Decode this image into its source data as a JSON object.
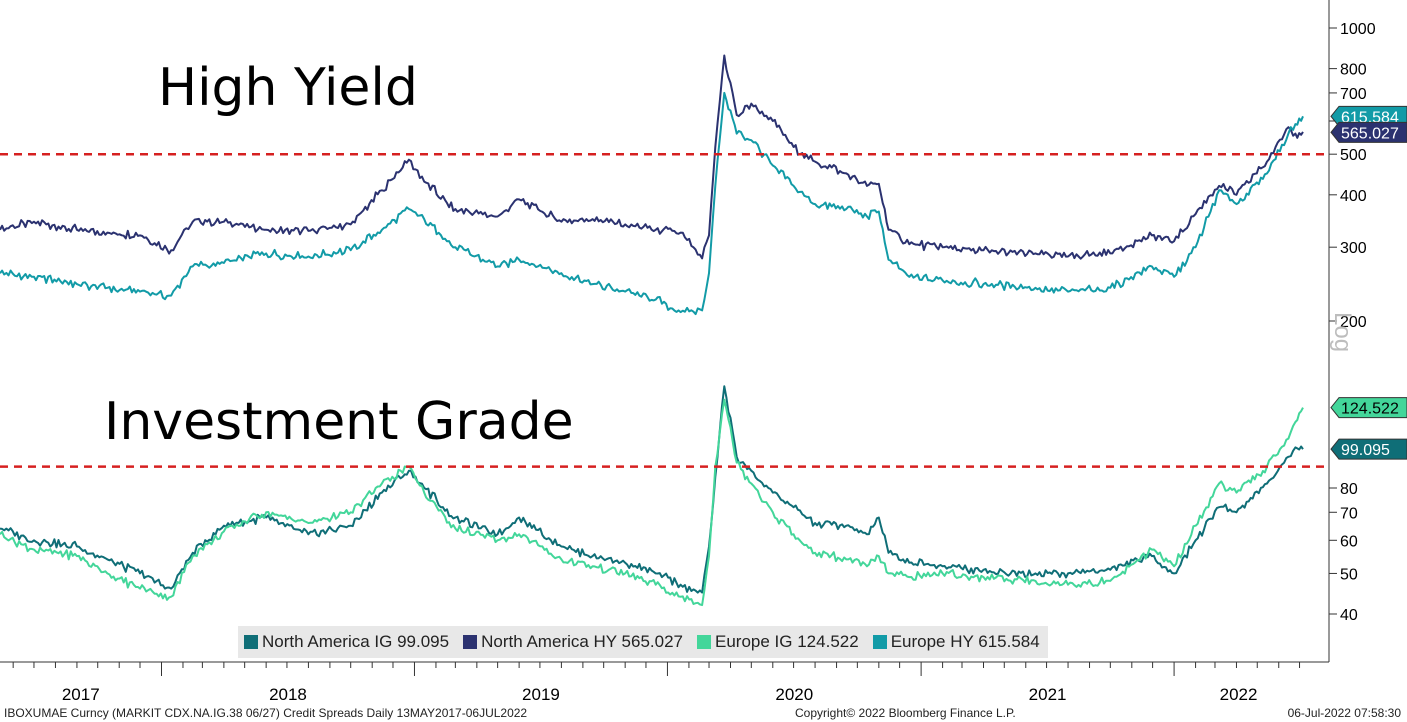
{
  "colors": {
    "na_ig": "#0f6e77",
    "na_hy": "#2b3270",
    "eu_ig": "#43d69a",
    "eu_hy": "#129ba7",
    "threshold": "#d62020",
    "value_tag_eu_hy_text": "#ffffff",
    "value_tag_eu_ig_text": "#000000"
  },
  "annotations": {
    "high_yield": "High Yield",
    "investment_grade": "Investment Grade"
  },
  "axis_scale_label": "Log",
  "legend": [
    {
      "label": "North America IG 99.095",
      "color": "#0f6e77"
    },
    {
      "label": "North America HY 565.027",
      "color": "#2b3270"
    },
    {
      "label": "Europe IG 124.522",
      "color": "#43d69a"
    },
    {
      "label": "Europe HY 615.584",
      "color": "#129ba7"
    }
  ],
  "footer": {
    "left": "IBOXUMAE Curncy (MARKIT CDX.NA.IG.38 06/27) Credit Spreads  Daily 13MAY2017-06JUL2022",
    "center": "Copyright© 2022 Bloomberg Finance L.P.",
    "right": "06-Jul-2022 07:58:30"
  },
  "chart_data": [
    {
      "type": "line",
      "panel": "High Yield",
      "scale": "log",
      "x_ticks": [
        "2017",
        "2018",
        "2019",
        "2020",
        "2021",
        "2022"
      ],
      "x_range": [
        "2017-05-13",
        "2022-07-06"
      ],
      "y_ticks": [
        200,
        300,
        400,
        500,
        600,
        700,
        800,
        1000
      ],
      "y_tick_labels": [
        "200",
        "300",
        "400",
        "500",
        "",
        "700",
        "800",
        "1000"
      ],
      "ylim": [
        160,
        1050
      ],
      "threshold": 500,
      "last_value_tags": [
        {
          "series": "Europe HY",
          "label": "615.584",
          "value": 615.584
        },
        {
          "series": "North America HY",
          "label": "565.027",
          "value": 565.027
        }
      ],
      "series": [
        {
          "name": "North America HY",
          "points": [
            [
              "2017-05-13",
              330
            ],
            [
              "2017-07-01",
              345
            ],
            [
              "2017-09-01",
              330
            ],
            [
              "2017-10-15",
              325
            ],
            [
              "2017-12-01",
              320
            ],
            [
              "2018-01-15",
              295
            ],
            [
              "2018-02-15",
              345
            ],
            [
              "2018-04-01",
              345
            ],
            [
              "2018-06-01",
              330
            ],
            [
              "2018-08-01",
              328
            ],
            [
              "2018-10-01",
              340
            ],
            [
              "2018-11-15",
              410
            ],
            [
              "2018-12-24",
              485
            ],
            [
              "2019-01-15",
              430
            ],
            [
              "2019-03-01",
              370
            ],
            [
              "2019-05-01",
              355
            ],
            [
              "2019-06-01",
              390
            ],
            [
              "2019-08-01",
              345
            ],
            [
              "2019-09-15",
              350
            ],
            [
              "2019-11-01",
              340
            ],
            [
              "2019-12-15",
              330
            ],
            [
              "2020-01-20",
              325
            ],
            [
              "2020-02-20",
              282
            ],
            [
              "2020-03-01",
              320
            ],
            [
              "2020-03-10",
              520
            ],
            [
              "2020-03-23",
              860
            ],
            [
              "2020-04-10",
              620
            ],
            [
              "2020-05-01",
              660
            ],
            [
              "2020-06-01",
              600
            ],
            [
              "2020-07-01",
              520
            ],
            [
              "2020-08-01",
              480
            ],
            [
              "2020-09-15",
              450
            ],
            [
              "2020-10-15",
              420
            ],
            [
              "2020-11-01",
              425
            ],
            [
              "2020-11-15",
              330
            ],
            [
              "2020-12-15",
              305
            ],
            [
              "2021-02-01",
              300
            ],
            [
              "2021-04-01",
              295
            ],
            [
              "2021-06-15",
              290
            ],
            [
              "2021-08-01",
              285
            ],
            [
              "2021-10-01",
              290
            ],
            [
              "2021-11-30",
              320
            ],
            [
              "2022-01-01",
              310
            ],
            [
              "2022-02-01",
              360
            ],
            [
              "2022-03-07",
              420
            ],
            [
              "2022-04-01",
              400
            ],
            [
              "2022-05-15",
              480
            ],
            [
              "2022-06-15",
              580
            ],
            [
              "2022-06-25",
              560
            ],
            [
              "2022-07-06",
              565.027
            ]
          ]
        },
        {
          "name": "Europe HY",
          "points": [
            [
              "2017-05-13",
              260
            ],
            [
              "2017-07-01",
              255
            ],
            [
              "2017-09-01",
              245
            ],
            [
              "2017-10-15",
              240
            ],
            [
              "2017-12-01",
              235
            ],
            [
              "2018-01-15",
              230
            ],
            [
              "2018-02-15",
              270
            ],
            [
              "2018-04-01",
              275
            ],
            [
              "2018-06-01",
              290
            ],
            [
              "2018-08-01",
              285
            ],
            [
              "2018-10-01",
              295
            ],
            [
              "2018-11-15",
              330
            ],
            [
              "2018-12-24",
              370
            ],
            [
              "2019-01-15",
              350
            ],
            [
              "2019-03-01",
              300
            ],
            [
              "2019-05-01",
              270
            ],
            [
              "2019-06-01",
              280
            ],
            [
              "2019-08-01",
              260
            ],
            [
              "2019-09-15",
              245
            ],
            [
              "2019-11-01",
              235
            ],
            [
              "2019-12-15",
              225
            ],
            [
              "2020-01-20",
              210
            ],
            [
              "2020-02-20",
              212
            ],
            [
              "2020-03-01",
              260
            ],
            [
              "2020-03-10",
              420
            ],
            [
              "2020-03-23",
              700
            ],
            [
              "2020-04-10",
              560
            ],
            [
              "2020-05-01",
              540
            ],
            [
              "2020-06-01",
              470
            ],
            [
              "2020-07-01",
              420
            ],
            [
              "2020-08-01",
              380
            ],
            [
              "2020-09-15",
              370
            ],
            [
              "2020-10-15",
              355
            ],
            [
              "2020-11-01",
              365
            ],
            [
              "2020-11-15",
              280
            ],
            [
              "2020-12-15",
              255
            ],
            [
              "2021-02-01",
              250
            ],
            [
              "2021-04-01",
              245
            ],
            [
              "2021-06-15",
              240
            ],
            [
              "2021-08-01",
              235
            ],
            [
              "2021-10-01",
              240
            ],
            [
              "2021-11-30",
              270
            ],
            [
              "2022-01-01",
              255
            ],
            [
              "2022-02-01",
              300
            ],
            [
              "2022-03-07",
              410
            ],
            [
              "2022-04-01",
              380
            ],
            [
              "2022-05-15",
              450
            ],
            [
              "2022-06-15",
              560
            ],
            [
              "2022-06-25",
              590
            ],
            [
              "2022-07-06",
              615.584
            ]
          ]
        }
      ]
    },
    {
      "type": "line",
      "panel": "Investment Grade",
      "scale": "log",
      "x_ticks": [
        "2017",
        "2018",
        "2019",
        "2020",
        "2021",
        "2022"
      ],
      "x_range": [
        "2017-05-13",
        "2022-07-06"
      ],
      "y_ticks": [
        40,
        50,
        60,
        70,
        80
      ],
      "y_tick_labels": [
        "40",
        "50",
        "60",
        "70",
        "80"
      ],
      "ylim": [
        37,
        135
      ],
      "threshold": 90,
      "last_value_tags": [
        {
          "series": "Europe IG",
          "label": "124.522",
          "value": 124.522
        },
        {
          "series": "North America IG",
          "label": "99.095",
          "value": 99.095
        }
      ],
      "series": [
        {
          "name": "North America IG",
          "points": [
            [
              "2017-05-13",
              64
            ],
            [
              "2017-07-01",
              60
            ],
            [
              "2017-09-01",
              58
            ],
            [
              "2017-10-15",
              54
            ],
            [
              "2017-12-01",
              50
            ],
            [
              "2018-01-15",
              46
            ],
            [
              "2018-02-15",
              56
            ],
            [
              "2018-04-01",
              65
            ],
            [
              "2018-06-01",
              68
            ],
            [
              "2018-08-01",
              62
            ],
            [
              "2018-10-01",
              65
            ],
            [
              "2018-11-15",
              78
            ],
            [
              "2018-12-24",
              88
            ],
            [
              "2019-01-15",
              80
            ],
            [
              "2019-03-01",
              68
            ],
            [
              "2019-05-01",
              62
            ],
            [
              "2019-06-01",
              68
            ],
            [
              "2019-08-01",
              58
            ],
            [
              "2019-09-15",
              55
            ],
            [
              "2019-11-01",
              53
            ],
            [
              "2019-12-15",
              50
            ],
            [
              "2020-01-20",
              47
            ],
            [
              "2020-02-20",
              45
            ],
            [
              "2020-03-01",
              58
            ],
            [
              "2020-03-10",
              85
            ],
            [
              "2020-03-23",
              140
            ],
            [
              "2020-04-10",
              95
            ],
            [
              "2020-05-01",
              88
            ],
            [
              "2020-06-01",
              78
            ],
            [
              "2020-07-01",
              72
            ],
            [
              "2020-08-01",
              66
            ],
            [
              "2020-09-15",
              65
            ],
            [
              "2020-10-15",
              62
            ],
            [
              "2020-11-01",
              68
            ],
            [
              "2020-11-15",
              56
            ],
            [
              "2020-12-15",
              53
            ],
            [
              "2021-02-01",
              52
            ],
            [
              "2021-04-01",
              51
            ],
            [
              "2021-06-15",
              50
            ],
            [
              "2021-08-01",
              50
            ],
            [
              "2021-10-01",
              51
            ],
            [
              "2021-11-30",
              55
            ],
            [
              "2022-01-01",
              50
            ],
            [
              "2022-02-01",
              60
            ],
            [
              "2022-03-07",
              72
            ],
            [
              "2022-04-01",
              70
            ],
            [
              "2022-05-15",
              82
            ],
            [
              "2022-06-15",
              95
            ],
            [
              "2022-06-25",
              100
            ],
            [
              "2022-07-06",
              99.095
            ]
          ]
        },
        {
          "name": "Europe IG",
          "points": [
            [
              "2017-05-13",
              62
            ],
            [
              "2017-07-01",
              57
            ],
            [
              "2017-09-01",
              55
            ],
            [
              "2017-10-15",
              50
            ],
            [
              "2017-12-01",
              46
            ],
            [
              "2018-01-15",
              44
            ],
            [
              "2018-02-15",
              55
            ],
            [
              "2018-04-01",
              63
            ],
            [
              "2018-06-01",
              70
            ],
            [
              "2018-08-01",
              66
            ],
            [
              "2018-10-01",
              70
            ],
            [
              "2018-11-15",
              82
            ],
            [
              "2018-12-24",
              90
            ],
            [
              "2019-01-15",
              78
            ],
            [
              "2019-03-01",
              64
            ],
            [
              "2019-05-01",
              60
            ],
            [
              "2019-06-01",
              62
            ],
            [
              "2019-08-01",
              54
            ],
            [
              "2019-09-15",
              52
            ],
            [
              "2019-11-01",
              50
            ],
            [
              "2019-12-15",
              47
            ],
            [
              "2020-01-20",
              44
            ],
            [
              "2020-02-20",
              42
            ],
            [
              "2020-03-01",
              55
            ],
            [
              "2020-03-10",
              90
            ],
            [
              "2020-03-23",
              130
            ],
            [
              "2020-04-10",
              92
            ],
            [
              "2020-05-01",
              82
            ],
            [
              "2020-06-01",
              70
            ],
            [
              "2020-07-01",
              62
            ],
            [
              "2020-08-01",
              56
            ],
            [
              "2020-09-15",
              54
            ],
            [
              "2020-10-15",
              52
            ],
            [
              "2020-11-01",
              55
            ],
            [
              "2020-11-15",
              50
            ],
            [
              "2020-12-15",
              49
            ],
            [
              "2021-02-01",
              50
            ],
            [
              "2021-04-01",
              49
            ],
            [
              "2021-06-15",
              48
            ],
            [
              "2021-08-01",
              47
            ],
            [
              "2021-10-01",
              48
            ],
            [
              "2021-11-30",
              57
            ],
            [
              "2022-01-01",
              52
            ],
            [
              "2022-02-01",
              65
            ],
            [
              "2022-03-07",
              82
            ],
            [
              "2022-04-01",
              78
            ],
            [
              "2022-05-15",
              90
            ],
            [
              "2022-06-15",
              105
            ],
            [
              "2022-06-25",
              115
            ],
            [
              "2022-07-06",
              124.522
            ]
          ]
        }
      ]
    }
  ]
}
